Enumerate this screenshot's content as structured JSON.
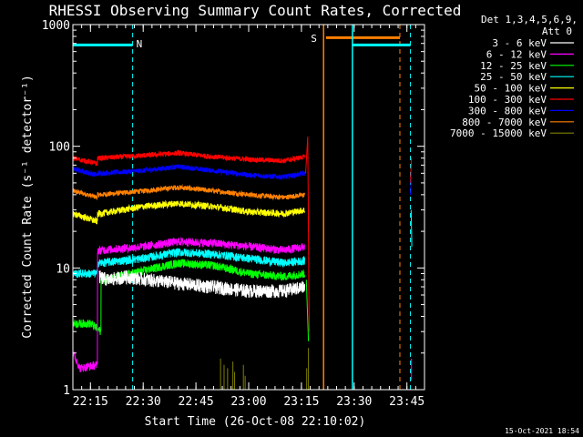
{
  "chart_data": {
    "type": "line",
    "title": "RHESSI Observing Summary Count Rates, Corrected",
    "xlabel": "Start Time (26-Oct-08 22:10:02)",
    "ylabel": "Corrected Count Rate (s⁻¹ detector⁻¹)",
    "yscale": "log",
    "ylim": [
      1,
      1000
    ],
    "xlim_minutes": [
      0,
      100
    ],
    "x_ticks": [
      {
        "label": "22:15",
        "min": 5
      },
      {
        "label": "22:30",
        "min": 20
      },
      {
        "label": "22:45",
        "min": 35
      },
      {
        "label": "23:00",
        "min": 50
      },
      {
        "label": "23:15",
        "min": 65
      },
      {
        "label": "23:30",
        "min": 80
      },
      {
        "label": "23:45",
        "min": 95
      }
    ],
    "y_ticks": [
      {
        "label": "1",
        "value": 1
      },
      {
        "label": "10",
        "value": 10
      },
      {
        "label": "100",
        "value": 100
      },
      {
        "label": "1000",
        "value": 1000
      }
    ],
    "legend": {
      "header": [
        "Det 1,3,4,5,6,9,",
        "Att 0"
      ],
      "placement": "right"
    },
    "series": [
      {
        "name": "3 - 6 keV",
        "color": "#ffffff",
        "noise": 0.08,
        "points": [
          [
            7.5,
            8.5
          ],
          [
            10,
            8
          ],
          [
            15,
            8.5
          ],
          [
            22,
            8
          ],
          [
            30,
            7.5
          ],
          [
            40,
            7
          ],
          [
            50,
            6.5
          ],
          [
            60,
            6.5
          ],
          [
            66,
            7
          ]
        ]
      },
      {
        "name": "6 - 12 keV",
        "color": "#ff00ff",
        "noise": 0.05,
        "points": [
          [
            0,
            2
          ],
          [
            2,
            1.5
          ],
          [
            7,
            1.6
          ],
          [
            8,
            14
          ],
          [
            20,
            15
          ],
          [
            30,
            16.5
          ],
          [
            40,
            16
          ],
          [
            50,
            15
          ],
          [
            60,
            14
          ],
          [
            66,
            15
          ]
        ]
      },
      {
        "name": "12 - 25 keV",
        "color": "#00ff00",
        "noise": 0.05,
        "points": [
          [
            0,
            3.5
          ],
          [
            5,
            3.5
          ],
          [
            8,
            3
          ],
          [
            9,
            8
          ],
          [
            20,
            9.5
          ],
          [
            30,
            11
          ],
          [
            40,
            10.5
          ],
          [
            50,
            9
          ],
          [
            60,
            8.5
          ],
          [
            66,
            9
          ]
        ]
      },
      {
        "name": "25 - 50 keV",
        "color": "#00ffff",
        "noise": 0.05,
        "points": [
          [
            0,
            9
          ],
          [
            7,
            9
          ],
          [
            8,
            11
          ],
          [
            20,
            12
          ],
          [
            30,
            13.5
          ],
          [
            40,
            13
          ],
          [
            50,
            12
          ],
          [
            60,
            11
          ],
          [
            66,
            11.5
          ]
        ]
      },
      {
        "name": "50 - 100 keV",
        "color": "#ffff00",
        "noise": 0.04,
        "points": [
          [
            0,
            28
          ],
          [
            7,
            24
          ],
          [
            8,
            28
          ],
          [
            20,
            32
          ],
          [
            30,
            34
          ],
          [
            40,
            32
          ],
          [
            50,
            29
          ],
          [
            60,
            28
          ],
          [
            66,
            30
          ]
        ]
      },
      {
        "name": "100 - 300 keV",
        "color": "#ff0000",
        "noise": 0.03,
        "points": [
          [
            0,
            80
          ],
          [
            7,
            72
          ],
          [
            8,
            80
          ],
          [
            20,
            84
          ],
          [
            30,
            88
          ],
          [
            40,
            82
          ],
          [
            50,
            78
          ],
          [
            60,
            76
          ],
          [
            66,
            82
          ]
        ]
      },
      {
        "name": "300 - 800 keV",
        "color": "#0000ff",
        "noise": 0.03,
        "points": [
          [
            0,
            65
          ],
          [
            7,
            58
          ],
          [
            8,
            60
          ],
          [
            20,
            63
          ],
          [
            30,
            68
          ],
          [
            40,
            63
          ],
          [
            50,
            58
          ],
          [
            60,
            56
          ],
          [
            66,
            60
          ]
        ]
      },
      {
        "name": "800 - 7000 keV",
        "color": "#ff8000",
        "noise": 0.03,
        "points": [
          [
            0,
            43
          ],
          [
            7,
            38
          ],
          [
            8,
            40
          ],
          [
            20,
            43
          ],
          [
            30,
            46
          ],
          [
            40,
            43
          ],
          [
            50,
            40
          ],
          [
            60,
            38
          ],
          [
            66,
            40
          ]
        ]
      },
      {
        "name": "7000 - 15000 keV",
        "color": "#808000",
        "noise": 0.0,
        "points": []
      }
    ],
    "annotations": {
      "N": {
        "label": "N",
        "color": "#00ffff",
        "bar": [
          0,
          17
        ],
        "bar_value": 680,
        "dashed_at": 17
      },
      "S": {
        "label": "S",
        "color": "#ff8000",
        "bar": [
          72,
          93
        ],
        "bar_value": 780,
        "solid_at": 71.3,
        "dashed_at": 93
      },
      "cyan_after": {
        "bar": [
          79.5,
          96
        ],
        "bar_value": 680,
        "solid_at": 79.5,
        "dashed_at": 96
      }
    }
  },
  "footer": {
    "timestamp": "15-Oct-2021 18:54"
  }
}
